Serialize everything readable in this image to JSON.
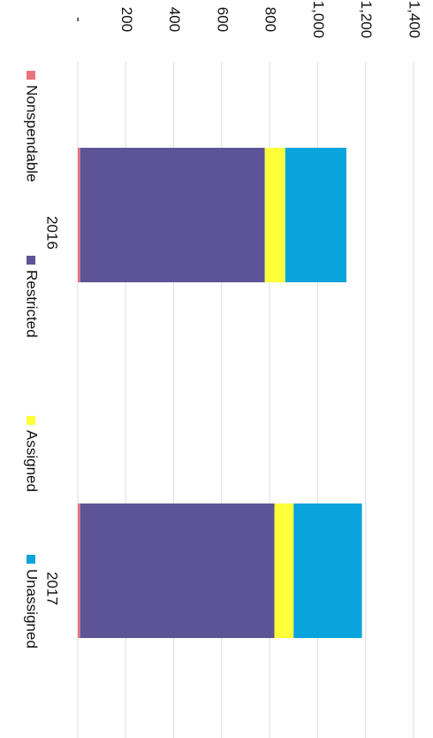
{
  "chart_data": {
    "type": "bar",
    "stacked": true,
    "categories": [
      "2016",
      "2017"
    ],
    "series": [
      {
        "name": "Nonspendable",
        "color": "#e8747c",
        "values": [
          10,
          10
        ]
      },
      {
        "name": "Restricted",
        "color": "#5c5496",
        "values": [
          770,
          810
        ]
      },
      {
        "name": "Assigned",
        "color": "#ffff3a",
        "values": [
          85,
          80
        ]
      },
      {
        "name": "Unassigned",
        "color": "#0aa4dc",
        "values": [
          255,
          285
        ]
      }
    ],
    "y_ticks": [
      "-",
      "200",
      "400",
      "600",
      "800",
      "1,000",
      "1,200",
      "1,400"
    ],
    "ylim": [
      0,
      1400
    ],
    "grid": true,
    "legend_position": "bottom"
  }
}
